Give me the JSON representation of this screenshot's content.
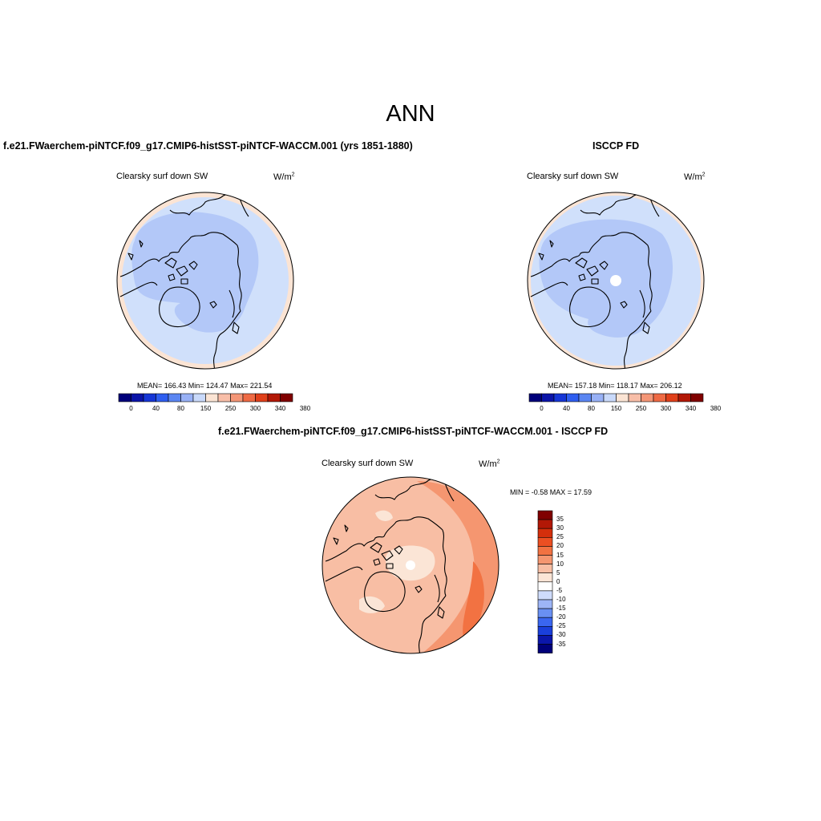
{
  "page_title": "ANN",
  "panels": {
    "model": {
      "title": "f.e21.FWaerchem-piNTCF.f09_g17.CMIP6-histSST-piNTCF-WACCM.001 (yrs 1851-1880)",
      "var_label": "Clearsky surf down SW",
      "units_base": "W/m",
      "units_exp": "2",
      "stats_text": "MEAN= 166.43  Min= 124.47  Max= 221.54"
    },
    "obs": {
      "title": "ISCCP FD",
      "var_label": "Clearsky surf down SW",
      "units_base": "W/m",
      "units_exp": "2",
      "stats_text": "MEAN= 157.18  Min= 118.17  Max= 206.12"
    },
    "diff": {
      "title": "f.e21.FWaerchem-piNTCF.f09_g17.CMIP6-histSST-piNTCF-WACCM.001 - ISCCP FD",
      "var_label": "Clearsky surf down SW",
      "units_base": "W/m",
      "units_exp": "2",
      "stats_text": "MIN =  -0.58 MAX =  17.59"
    }
  },
  "colorbar_main": {
    "tick_labels": [
      "0",
      "40",
      "80",
      "150",
      "250",
      "300",
      "340",
      "380"
    ],
    "colors": [
      "#00007a",
      "#0b14a8",
      "#1636d6",
      "#2f5ef0",
      "#5b86f2",
      "#98b1f6",
      "#c9d9fa",
      "#fbe4d4",
      "#f8bea8",
      "#f49677",
      "#ef6a44",
      "#e0401a",
      "#b21806",
      "#800000"
    ]
  },
  "colorbar_diff": {
    "tick_labels": [
      "35",
      "30",
      "25",
      "20",
      "15",
      "10",
      "5",
      "0",
      "-5",
      "-10",
      "-15",
      "-20",
      "-25",
      "-30",
      "-35"
    ],
    "colors_top_to_bottom": [
      "#800000",
      "#b21806",
      "#d42f0c",
      "#ec4f22",
      "#f27242",
      "#f59670",
      "#f8bea4",
      "#fbe5d6",
      "#ffffff",
      "#cfdcfb",
      "#9db5f6",
      "#6990f3",
      "#3a66f0",
      "#1a3fdb",
      "#0b16aa",
      "#00007a"
    ]
  },
  "chart_data": [
    {
      "type": "map",
      "projection": "north polar stereographic",
      "title": "f.e21.FWaerchem-piNTCF.f09_g17.CMIP6-histSST-piNTCF-WACCM.001 (yrs 1851-1880)",
      "variable": "Clearsky surf down SW",
      "units": "W/m2",
      "mean": 166.43,
      "min": 124.47,
      "max": 221.54,
      "contour_levels": [
        0,
        40,
        80,
        150,
        250,
        300,
        340,
        380
      ]
    },
    {
      "type": "map",
      "projection": "north polar stereographic",
      "title": "ISCCP FD",
      "variable": "Clearsky surf down SW",
      "units": "W/m2",
      "mean": 157.18,
      "min": 118.17,
      "max": 206.12,
      "contour_levels": [
        0,
        40,
        80,
        150,
        250,
        300,
        340,
        380
      ]
    },
    {
      "type": "map",
      "projection": "north polar stereographic",
      "title": "f.e21.FWaerchem-piNTCF.f09_g17.CMIP6-histSST-piNTCF-WACCM.001 - ISCCP FD",
      "variable": "Clearsky surf down SW",
      "units": "W/m2",
      "min": -0.58,
      "max": 17.59,
      "contour_levels": [
        -35,
        -30,
        -25,
        -20,
        -15,
        -10,
        -5,
        0,
        5,
        10,
        15,
        20,
        25,
        30,
        35
      ]
    }
  ]
}
